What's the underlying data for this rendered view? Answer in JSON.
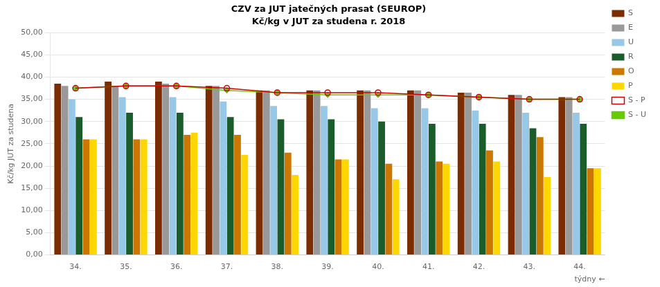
{
  "chart_data": {
    "type": "bar",
    "title": "CZV za JUT jatečných prasat (SEUROP)",
    "subtitle": "Kč/kg v JUT za studena r. 2018",
    "xlabel": "týdny",
    "ylabel": "Kč/kg JUT za studena",
    "annotations": [
      "←"
    ],
    "categories": [
      "34.",
      "35.",
      "36.",
      "37.",
      "38.",
      "39.",
      "40.",
      "41.",
      "42.",
      "43.",
      "44."
    ],
    "series": [
      {
        "name": "S",
        "type": "bar",
        "color": "#7B2C00",
        "values": [
          38.5,
          39.0,
          39.0,
          38.0,
          37.0,
          37.0,
          37.0,
          37.0,
          36.5,
          36.0,
          35.5
        ]
      },
      {
        "name": "E",
        "type": "bar",
        "color": "#999999",
        "values": [
          38.0,
          38.0,
          38.5,
          38.0,
          37.0,
          37.0,
          37.0,
          37.0,
          36.5,
          36.0,
          35.5
        ]
      },
      {
        "name": "U",
        "type": "bar",
        "color": "#97C8E8",
        "values": [
          35.0,
          35.5,
          35.5,
          34.5,
          33.5,
          33.5,
          33.0,
          33.0,
          32.5,
          32.0,
          32.0
        ]
      },
      {
        "name": "R",
        "type": "bar",
        "color": "#1A5C2A",
        "values": [
          31.0,
          32.0,
          32.0,
          31.0,
          30.5,
          30.5,
          30.0,
          29.5,
          29.5,
          28.5,
          29.5
        ]
      },
      {
        "name": "O",
        "type": "bar",
        "color": "#CC7700",
        "values": [
          26.0,
          26.0,
          27.0,
          27.0,
          23.0,
          21.5,
          20.5,
          21.0,
          23.5,
          26.5,
          19.5
        ]
      },
      {
        "name": "P",
        "type": "bar",
        "color": "#FFD700",
        "values": [
          26.0,
          26.0,
          27.5,
          22.5,
          18.0,
          21.5,
          17.0,
          20.5,
          21.0,
          17.5,
          19.5
        ]
      },
      {
        "name": "S - P",
        "type": "line",
        "color": "#CC0000",
        "marker": "circle",
        "values": [
          37.5,
          38.0,
          38.0,
          37.5,
          36.5,
          36.5,
          36.5,
          36.0,
          35.5,
          35.0,
          35.0
        ]
      },
      {
        "name": "S - U",
        "type": "line",
        "color": "#66CC00",
        "marker": "diamond",
        "values": [
          37.5,
          38.0,
          38.0,
          37.0,
          36.5,
          36.0,
          36.0,
          36.0,
          35.5,
          35.0,
          35.0
        ]
      }
    ],
    "ylim": [
      0,
      50
    ],
    "yticks": [
      {
        "value": 0,
        "label": "0,00"
      },
      {
        "value": 5,
        "label": "5,00"
      },
      {
        "value": 10,
        "label": "10,00"
      },
      {
        "value": 15,
        "label": "15,00"
      },
      {
        "value": 20,
        "label": "20,00"
      },
      {
        "value": 25,
        "label": "25,00"
      },
      {
        "value": 30,
        "label": "30,00"
      },
      {
        "value": 35,
        "label": "35,00"
      },
      {
        "value": 40,
        "label": "40,00"
      },
      {
        "value": 45,
        "label": "45,00"
      },
      {
        "value": 50,
        "label": "50,00"
      }
    ],
    "grid": true,
    "legend": "right"
  }
}
